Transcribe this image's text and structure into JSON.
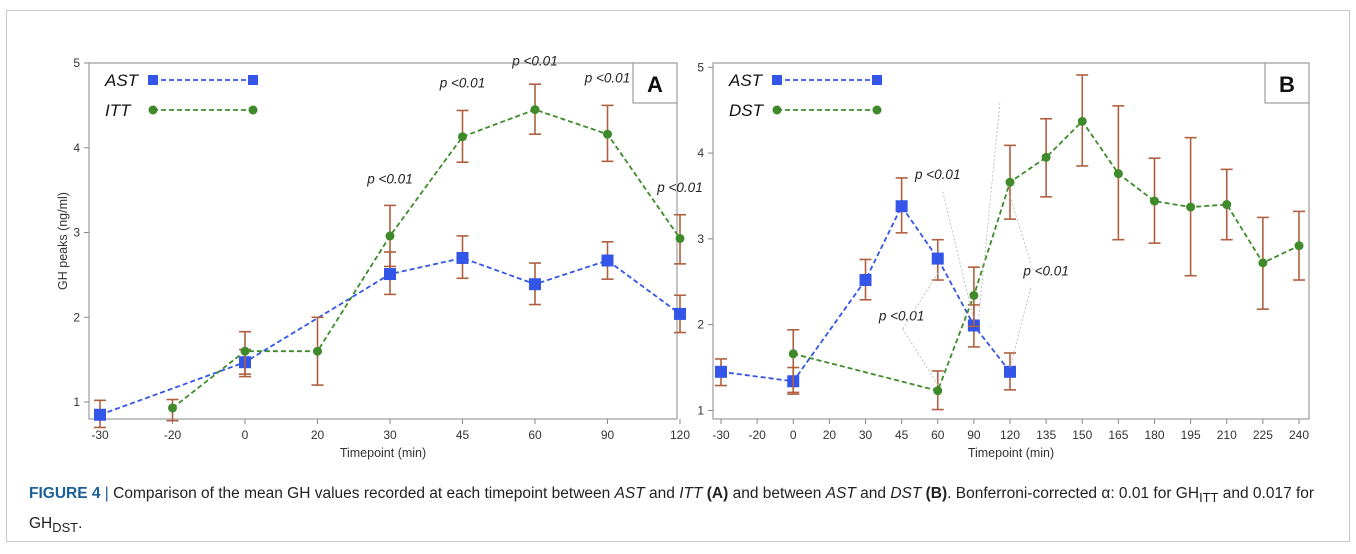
{
  "figure": {
    "caption": {
      "label": "FIGURE 4",
      "separator": " | ",
      "t1": "Comparison of the mean GH values recorded at each timepoint between ",
      "ast1": "AST",
      "t2": " and ",
      "itt": "ITT",
      "pa": " (A)",
      "t3": " and between ",
      "ast2": "AST",
      "t4": " and ",
      "dst": "DST",
      "pb": " (B)",
      "t5": ". Bonferroni-corrected α: 0.01 for GH",
      "sub1": "ITT",
      "t6": " and 0.017 for GH",
      "sub2": "DST",
      "t7": "."
    }
  },
  "colors": {
    "ast": "#3355e8",
    "other": "#3f8a2a",
    "errorbar": "#b06040",
    "axis": "#888888",
    "frame": "#c8c8c8"
  },
  "chart_data": [
    {
      "type": "line",
      "panel_label": "A",
      "xlabel": "Timepoint (min)",
      "ylabel": "GH peaks (ng/ml)",
      "categories": [
        "-30",
        "-20",
        "0",
        "20",
        "30",
        "45",
        "60",
        "90",
        "120"
      ],
      "ylim": [
        0.8,
        5
      ],
      "yticks": [
        1,
        2,
        3,
        4,
        5
      ],
      "legend": "top-left",
      "grid": false,
      "series": [
        {
          "name": "AST",
          "marker": "square",
          "color": "#3355e8",
          "points": [
            {
              "x": "-30",
              "y": 0.85,
              "lo": 0.7,
              "hi": 1.02
            },
            {
              "x": "0",
              "y": 1.47,
              "lo": 1.33,
              "hi": 1.62
            },
            {
              "x": "30",
              "y": 2.51,
              "lo": 2.27,
              "hi": 2.77
            },
            {
              "x": "45",
              "y": 2.7,
              "lo": 2.46,
              "hi": 2.96
            },
            {
              "x": "60",
              "y": 2.39,
              "lo": 2.15,
              "hi": 2.64
            },
            {
              "x": "90",
              "y": 2.67,
              "lo": 2.45,
              "hi": 2.89
            },
            {
              "x": "120",
              "y": 2.04,
              "lo": 1.82,
              "hi": 2.26
            }
          ]
        },
        {
          "name": "ITT",
          "marker": "circle",
          "color": "#3f8a2a",
          "points": [
            {
              "x": "-20",
              "y": 0.93,
              "lo": 0.78,
              "hi": 1.03
            },
            {
              "x": "0",
              "y": 1.6,
              "lo": 1.3,
              "hi": 1.83
            },
            {
              "x": "20",
              "y": 1.6,
              "lo": 1.2,
              "hi": 2.0
            },
            {
              "x": "30",
              "y": 2.96,
              "lo": 2.6,
              "hi": 3.32
            },
            {
              "x": "45",
              "y": 4.13,
              "lo": 3.83,
              "hi": 4.44
            },
            {
              "x": "60",
              "y": 4.45,
              "lo": 4.16,
              "hi": 4.75
            },
            {
              "x": "90",
              "y": 4.16,
              "lo": 3.84,
              "hi": 4.5
            },
            {
              "x": "120",
              "y": 2.93,
              "lo": 2.63,
              "hi": 3.21
            }
          ]
        }
      ],
      "annotations": [
        {
          "text": "p <0.01",
          "x": "30",
          "y": 3.58
        },
        {
          "text": "p <0.01",
          "x": "45",
          "y": 4.71
        },
        {
          "text": "p <0.01",
          "x": "60",
          "y": 4.97
        },
        {
          "text": "p <0.01",
          "x": "90",
          "y": 4.77
        },
        {
          "text": "p <0.01",
          "x": "120",
          "y": 3.48
        }
      ]
    },
    {
      "type": "line",
      "panel_label": "B",
      "xlabel": "Timepoint (min)",
      "ylabel": "",
      "categories": [
        "-30",
        "-20",
        "0",
        "20",
        "30",
        "45",
        "60",
        "90",
        "120",
        "135",
        "150",
        "165",
        "180",
        "195",
        "210",
        "225",
        "240"
      ],
      "ylim": [
        0.9,
        5.05
      ],
      "yticks": [
        1,
        2,
        3,
        4,
        5
      ],
      "legend": "top-left",
      "grid": false,
      "series": [
        {
          "name": "AST",
          "marker": "square",
          "color": "#3355e8",
          "points": [
            {
              "x": "-30",
              "y": 1.45,
              "lo": 1.29,
              "hi": 1.6
            },
            {
              "x": "0",
              "y": 1.34,
              "lo": 1.19,
              "hi": 1.5
            },
            {
              "x": "30",
              "y": 2.52,
              "lo": 2.29,
              "hi": 2.76
            },
            {
              "x": "45",
              "y": 3.38,
              "lo": 3.07,
              "hi": 3.71
            },
            {
              "x": "60",
              "y": 2.77,
              "lo": 2.52,
              "hi": 2.99
            },
            {
              "x": "90",
              "y": 1.99,
              "lo": 1.74,
              "hi": 2.23
            },
            {
              "x": "120",
              "y": 1.45,
              "lo": 1.24,
              "hi": 1.67
            }
          ]
        },
        {
          "name": "DST",
          "marker": "circle",
          "color": "#3f8a2a",
          "points": [
            {
              "x": "0",
              "y": 1.66,
              "lo": 1.21,
              "hi": 1.94
            },
            {
              "x": "60",
              "y": 1.23,
              "lo": 1.01,
              "hi": 1.46
            },
            {
              "x": "90",
              "y": 2.34,
              "lo": 1.98,
              "hi": 2.67
            },
            {
              "x": "120",
              "y": 3.66,
              "lo": 3.23,
              "hi": 4.09
            },
            {
              "x": "135",
              "y": 3.95,
              "lo": 3.49,
              "hi": 4.4
            },
            {
              "x": "150",
              "y": 4.37,
              "lo": 3.85,
              "hi": 4.91
            },
            {
              "x": "165",
              "y": 3.76,
              "lo": 2.99,
              "hi": 4.55
            },
            {
              "x": "180",
              "y": 3.44,
              "lo": 2.95,
              "hi": 3.94
            },
            {
              "x": "195",
              "y": 3.37,
              "lo": 2.57,
              "hi": 4.18
            },
            {
              "x": "210",
              "y": 3.4,
              "lo": 2.99,
              "hi": 3.81
            },
            {
              "x": "225",
              "y": 2.72,
              "lo": 2.18,
              "hi": 3.25
            },
            {
              "x": "240",
              "y": 2.92,
              "lo": 2.52,
              "hi": 3.32
            }
          ]
        }
      ],
      "annotations": [
        {
          "text": "p <0.01",
          "x": "60",
          "y": 3.7
        },
        {
          "text": "p <0.01",
          "x": "45",
          "y": 2.05
        },
        {
          "text": "p <0.01",
          "x": "135",
          "y": 2.57
        }
      ]
    }
  ]
}
